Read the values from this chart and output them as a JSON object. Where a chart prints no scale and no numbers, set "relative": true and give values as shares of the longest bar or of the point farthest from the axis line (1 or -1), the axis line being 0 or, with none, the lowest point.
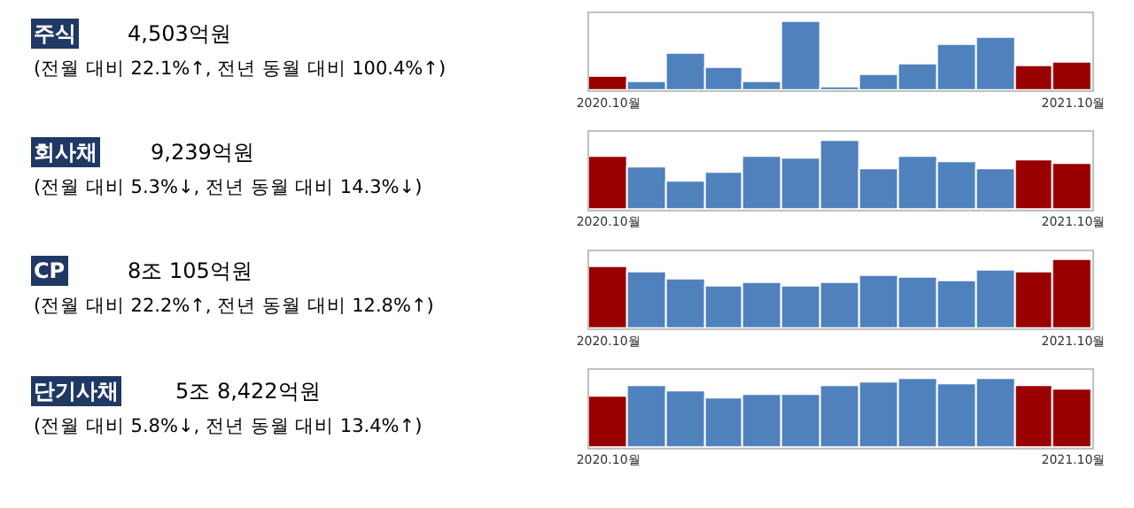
{
  "chart_data": [
    {
      "type": "bar",
      "annotations": [
        "주식",
        "4,503억원",
        "(전월 대비 22.1%↑, 전년 동월 대비 100.4%↑)"
      ],
      "relative": true,
      "categories": [
        "2020.10월",
        null,
        null,
        null,
        null,
        null,
        null,
        null,
        null,
        null,
        null,
        null,
        "2021.10월"
      ],
      "values": [
        0.2,
        0.13,
        0.54,
        0.32,
        0.11,
        1,
        0.05,
        0.22,
        0.38,
        0.67,
        0.75,
        0.35,
        0.41
      ],
      "colors": [
        "#990000",
        "#4f81bd",
        "#4f81bd",
        "#4f81bd",
        "#4f81bd",
        "#4f81bd",
        "#4f81bd",
        "#4f81bd",
        "#4f81bd",
        "#4f81bd",
        "#4f81bd",
        "#990000",
        "#990000"
      ]
    },
    {
      "type": "bar",
      "annotations": [
        "회사채",
        "9,239억원",
        "(전월 대비 5.3%↓, 전년 동월 대비 14.3%↓)"
      ],
      "relative": true,
      "categories": [
        "2020.10월",
        null,
        null,
        null,
        null,
        null,
        null,
        null,
        null,
        null,
        null,
        null,
        "2021.10월"
      ],
      "values": [
        0.77,
        0.61,
        0.41,
        0.54,
        0.77,
        0.74,
        1,
        0.59,
        0.77,
        0.68,
        0.59,
        0.7,
        0.66
      ],
      "colors": [
        "#990000",
        "#4f81bd",
        "#4f81bd",
        "#4f81bd",
        "#4f81bd",
        "#4f81bd",
        "#4f81bd",
        "#4f81bd",
        "#4f81bd",
        "#4f81bd",
        "#4f81bd",
        "#990000",
        "#990000"
      ]
    },
    {
      "type": "bar",
      "annotations": [
        "CP",
        "8조 105억원",
        "(전월 대비 22.2%↑, 전년 동월 대비 12.8%↑)"
      ],
      "relative": true,
      "categories": [
        "2020.10월",
        null,
        null,
        null,
        null,
        null,
        null,
        null,
        null,
        null,
        null,
        null,
        "2021.10월"
      ],
      "values": [
        0.89,
        0.82,
        0.7,
        0.6,
        0.66,
        0.61,
        0.67,
        0.75,
        0.74,
        0.69,
        0.85,
        0.81,
        1
      ],
      "colors": [
        "#990000",
        "#4f81bd",
        "#4f81bd",
        "#4f81bd",
        "#4f81bd",
        "#4f81bd",
        "#4f81bd",
        "#4f81bd",
        "#4f81bd",
        "#4f81bd",
        "#4f81bd",
        "#990000",
        "#990000"
      ]
    },
    {
      "type": "bar",
      "annotations": [
        "단기사채",
        "5조 8,422억원",
        "(전월 대비 5.8%↓, 전년 동월 대비 13.4%↑)"
      ],
      "relative": true,
      "categories": [
        "2020.10월",
        null,
        null,
        null,
        null,
        null,
        null,
        null,
        null,
        null,
        null,
        null,
        "2021.10월"
      ],
      "values": [
        0.74,
        0.9,
        0.8,
        0.72,
        0.77,
        0.77,
        0.88,
        0.94,
        1,
        0.91,
        1,
        0.89,
        0.84
      ],
      "colors": [
        "#990000",
        "#4f81bd",
        "#4f81bd",
        "#4f81bd",
        "#4f81bd",
        "#4f81bd",
        "#4f81bd",
        "#4f81bd",
        "#4f81bd",
        "#4f81bd",
        "#4f81bd",
        "#990000",
        "#990000"
      ]
    }
  ]
}
